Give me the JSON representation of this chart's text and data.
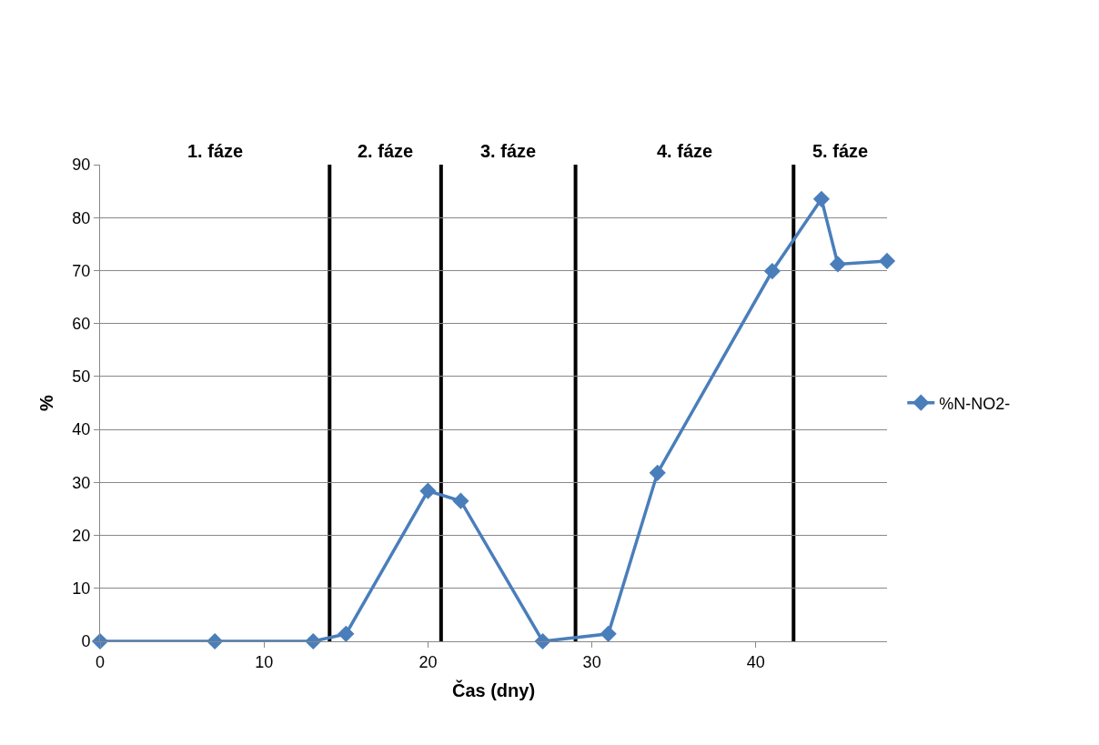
{
  "chart_data": {
    "type": "line",
    "xlabel": "Čas (dny)",
    "ylabel": "%",
    "xlim": [
      0,
      48
    ],
    "xticks": [
      0,
      10,
      20,
      30,
      40
    ],
    "ylim": [
      0,
      90
    ],
    "yticks": [
      0,
      10,
      20,
      30,
      40,
      50,
      60,
      70,
      80,
      90
    ],
    "grid": "y",
    "legend": "right",
    "marker": "diamond",
    "line_style": "solid",
    "series": [
      {
        "name": "%N-NO2-",
        "color": "#4a7ebb",
        "x": [
          0,
          7,
          13,
          15,
          20,
          22,
          27,
          31,
          34,
          41,
          44,
          45,
          48
        ],
        "values": [
          0,
          0,
          0,
          1.4,
          28.4,
          26.5,
          0,
          1.4,
          31.8,
          69.9,
          83.5,
          71.2,
          71.8
        ]
      }
    ],
    "ref_lines": [
      {
        "axis": "x",
        "value": 14,
        "color": "#000000"
      },
      {
        "axis": "x",
        "value": 20.8,
        "color": "#000000"
      },
      {
        "axis": "x",
        "value": 29,
        "color": "#000000"
      },
      {
        "axis": "x",
        "value": 42.3,
        "color": "#000000"
      }
    ],
    "annotations": [
      "1. fáze",
      "2. fáze",
      "3. fáze",
      "4. fáze",
      "5. fáze"
    ]
  }
}
